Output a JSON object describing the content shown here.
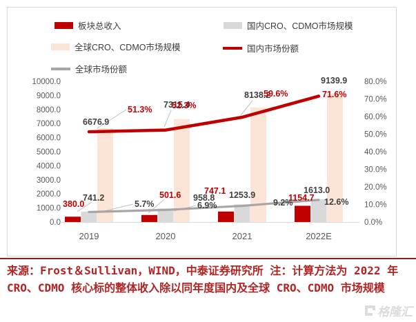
{
  "chart_data": {
    "type": "bar",
    "subtype": "combo-bar-line-dual-axis",
    "categories": [
      "2019",
      "2020",
      "2021",
      "2022E"
    ],
    "series": [
      {
        "name": "板块总收入",
        "type": "bar",
        "axis": "left",
        "color": "#c00000",
        "values": [
          380.0,
          501.6,
          747.1,
          1154.7
        ],
        "labels": [
          "380.0",
          "501.6",
          "747.1",
          "1154.7"
        ]
      },
      {
        "name": "国内CRO、CDMO市场规模",
        "type": "bar",
        "axis": "left",
        "color": "#d9d9d9",
        "values": [
          741.2,
          958.8,
          1253.9,
          1613.0
        ],
        "labels": [
          "741.2",
          "958.8",
          "1253.9",
          "1613.0"
        ]
      },
      {
        "name": "全球CRO、CDMO市场规模",
        "type": "bar",
        "axis": "left",
        "color": "#fce4d6",
        "values": [
          6676.9,
          7315.4,
          8138.2,
          9139.9
        ],
        "labels": [
          "6676.9",
          "7315.4",
          "8138.2",
          "9139.9"
        ]
      },
      {
        "name": "国内市场份额",
        "type": "line",
        "axis": "right",
        "color": "#c00000",
        "values": [
          51.3,
          52.3,
          59.6,
          71.6
        ],
        "labels": [
          "51.3%",
          "52.3%",
          "59.6%",
          "71.6%"
        ]
      },
      {
        "name": "全球市场份额",
        "type": "line",
        "axis": "right",
        "color": "#a6a6a6",
        "values": [
          5.7,
          6.9,
          9.2,
          12.6
        ],
        "labels": [
          "5.7%",
          "6.9%",
          "9.2%",
          "12.6%"
        ]
      }
    ],
    "left_axis": {
      "min": 0,
      "max": 10000,
      "step": 1000,
      "tick_labels": [
        "10000.0",
        "9000.0",
        "8000.0",
        "7000.0",
        "6000.0",
        "5000.0",
        "4000.0",
        "3000.0",
        "2000.0",
        "1000.0",
        "0.0"
      ]
    },
    "right_axis": {
      "min": 0,
      "max": 80,
      "step": 10,
      "tick_labels": [
        "80.0%",
        "70.0%",
        "60.0%",
        "50.0%",
        "40.0%",
        "30.0%",
        "20.0%",
        "10.0%",
        "0.0%"
      ]
    },
    "grid": false,
    "legend_position": "top-left-two-columns"
  },
  "legend": {
    "items": [
      {
        "label": "板块总收入",
        "swatch": "bar",
        "color": "#c00000"
      },
      {
        "label": "国内CRO、CDMO市场规模",
        "swatch": "bar",
        "color": "#d9d9d9"
      },
      {
        "label": "全球CRO、CDMO市场规模",
        "swatch": "bar",
        "color": "#fce4d6"
      },
      {
        "label": "国内市场份额",
        "swatch": "line",
        "color": "#c00000"
      },
      {
        "label": "全球市场份额",
        "swatch": "line",
        "color": "#a6a6a6"
      }
    ]
  },
  "source_note": "来源：Frost＆Sullivan，WIND，中泰证券研究所 注：计算方法为 2022 年 CRO、CDMO 核心标的整体收入除以同年度国内及全球 CRO、CDMO 市场规模",
  "watermark": {
    "logo": "G",
    "text": "格隆汇"
  },
  "colors": {
    "accent_red": "#c00000",
    "bar_gray": "#d9d9d9",
    "bar_peach": "#fce4d6",
    "line_gray": "#a6a6a6",
    "label_dark": "#404040",
    "axis_text": "#595959",
    "source_text": "#b32424",
    "frame_border": "#d9d9d9"
  }
}
